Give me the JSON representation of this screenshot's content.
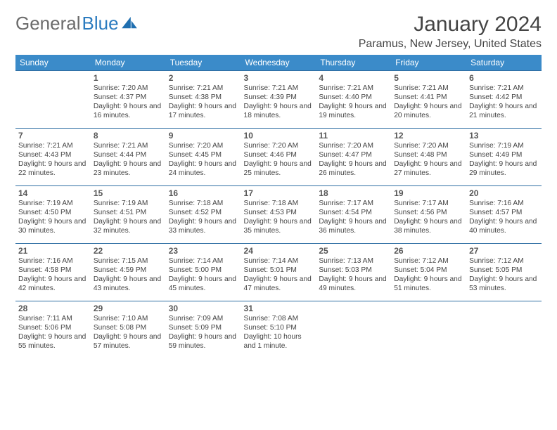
{
  "brand": {
    "part1": "General",
    "part2": "Blue"
  },
  "title": "January 2024",
  "location": "Paramus, New Jersey, United States",
  "colors": {
    "header_bg": "#3b8bc9",
    "week_border": "#2f6fa3",
    "text": "#444444",
    "logo_gray": "#6b6b6b",
    "logo_blue": "#2b7bbf"
  },
  "dow": [
    "Sunday",
    "Monday",
    "Tuesday",
    "Wednesday",
    "Thursday",
    "Friday",
    "Saturday"
  ],
  "weeks": [
    [
      null,
      {
        "n": "1",
        "sr": "7:20 AM",
        "ss": "4:37 PM",
        "dl": "9 hours and 16 minutes."
      },
      {
        "n": "2",
        "sr": "7:21 AM",
        "ss": "4:38 PM",
        "dl": "9 hours and 17 minutes."
      },
      {
        "n": "3",
        "sr": "7:21 AM",
        "ss": "4:39 PM",
        "dl": "9 hours and 18 minutes."
      },
      {
        "n": "4",
        "sr": "7:21 AM",
        "ss": "4:40 PM",
        "dl": "9 hours and 19 minutes."
      },
      {
        "n": "5",
        "sr": "7:21 AM",
        "ss": "4:41 PM",
        "dl": "9 hours and 20 minutes."
      },
      {
        "n": "6",
        "sr": "7:21 AM",
        "ss": "4:42 PM",
        "dl": "9 hours and 21 minutes."
      }
    ],
    [
      {
        "n": "7",
        "sr": "7:21 AM",
        "ss": "4:43 PM",
        "dl": "9 hours and 22 minutes."
      },
      {
        "n": "8",
        "sr": "7:21 AM",
        "ss": "4:44 PM",
        "dl": "9 hours and 23 minutes."
      },
      {
        "n": "9",
        "sr": "7:20 AM",
        "ss": "4:45 PM",
        "dl": "9 hours and 24 minutes."
      },
      {
        "n": "10",
        "sr": "7:20 AM",
        "ss": "4:46 PM",
        "dl": "9 hours and 25 minutes."
      },
      {
        "n": "11",
        "sr": "7:20 AM",
        "ss": "4:47 PM",
        "dl": "9 hours and 26 minutes."
      },
      {
        "n": "12",
        "sr": "7:20 AM",
        "ss": "4:48 PM",
        "dl": "9 hours and 27 minutes."
      },
      {
        "n": "13",
        "sr": "7:19 AM",
        "ss": "4:49 PM",
        "dl": "9 hours and 29 minutes."
      }
    ],
    [
      {
        "n": "14",
        "sr": "7:19 AM",
        "ss": "4:50 PM",
        "dl": "9 hours and 30 minutes."
      },
      {
        "n": "15",
        "sr": "7:19 AM",
        "ss": "4:51 PM",
        "dl": "9 hours and 32 minutes."
      },
      {
        "n": "16",
        "sr": "7:18 AM",
        "ss": "4:52 PM",
        "dl": "9 hours and 33 minutes."
      },
      {
        "n": "17",
        "sr": "7:18 AM",
        "ss": "4:53 PM",
        "dl": "9 hours and 35 minutes."
      },
      {
        "n": "18",
        "sr": "7:17 AM",
        "ss": "4:54 PM",
        "dl": "9 hours and 36 minutes."
      },
      {
        "n": "19",
        "sr": "7:17 AM",
        "ss": "4:56 PM",
        "dl": "9 hours and 38 minutes."
      },
      {
        "n": "20",
        "sr": "7:16 AM",
        "ss": "4:57 PM",
        "dl": "9 hours and 40 minutes."
      }
    ],
    [
      {
        "n": "21",
        "sr": "7:16 AM",
        "ss": "4:58 PM",
        "dl": "9 hours and 42 minutes."
      },
      {
        "n": "22",
        "sr": "7:15 AM",
        "ss": "4:59 PM",
        "dl": "9 hours and 43 minutes."
      },
      {
        "n": "23",
        "sr": "7:14 AM",
        "ss": "5:00 PM",
        "dl": "9 hours and 45 minutes."
      },
      {
        "n": "24",
        "sr": "7:14 AM",
        "ss": "5:01 PM",
        "dl": "9 hours and 47 minutes."
      },
      {
        "n": "25",
        "sr": "7:13 AM",
        "ss": "5:03 PM",
        "dl": "9 hours and 49 minutes."
      },
      {
        "n": "26",
        "sr": "7:12 AM",
        "ss": "5:04 PM",
        "dl": "9 hours and 51 minutes."
      },
      {
        "n": "27",
        "sr": "7:12 AM",
        "ss": "5:05 PM",
        "dl": "9 hours and 53 minutes."
      }
    ],
    [
      {
        "n": "28",
        "sr": "7:11 AM",
        "ss": "5:06 PM",
        "dl": "9 hours and 55 minutes."
      },
      {
        "n": "29",
        "sr": "7:10 AM",
        "ss": "5:08 PM",
        "dl": "9 hours and 57 minutes."
      },
      {
        "n": "30",
        "sr": "7:09 AM",
        "ss": "5:09 PM",
        "dl": "9 hours and 59 minutes."
      },
      {
        "n": "31",
        "sr": "7:08 AM",
        "ss": "5:10 PM",
        "dl": "10 hours and 1 minute."
      },
      null,
      null,
      null
    ]
  ]
}
